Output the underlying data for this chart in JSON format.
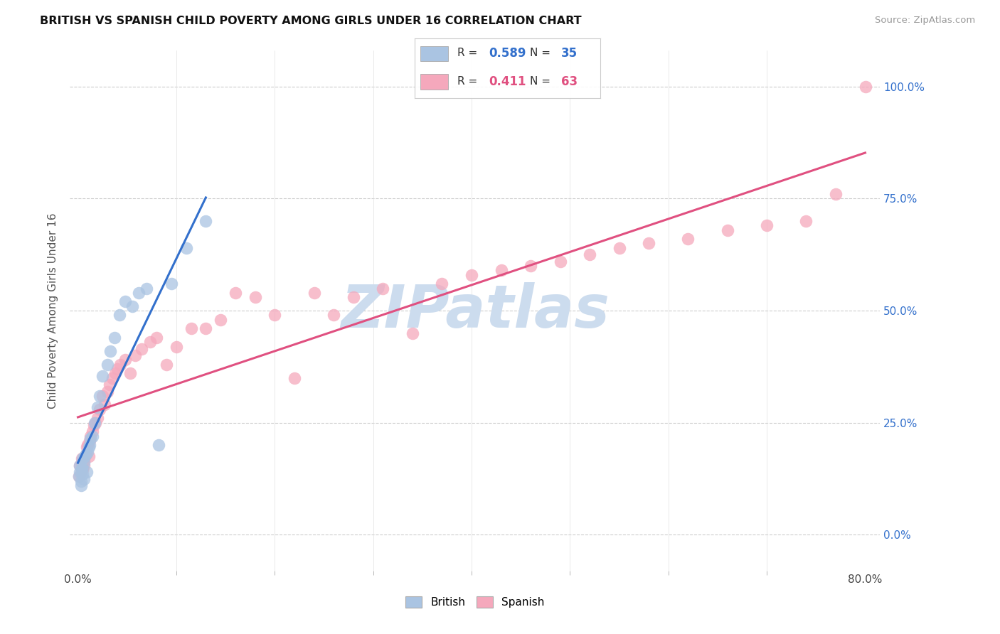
{
  "title": "BRITISH VS SPANISH CHILD POVERTY AMONG GIRLS UNDER 16 CORRELATION CHART",
  "source": "Source: ZipAtlas.com",
  "ylabel": "Child Poverty Among Girls Under 16",
  "british_R": 0.589,
  "british_N": 35,
  "spanish_R": 0.411,
  "spanish_N": 63,
  "british_color": "#aac4e2",
  "spanish_color": "#f5a8bc",
  "british_line_color": "#3370cc",
  "spanish_line_color": "#e05080",
  "watermark_text": "ZIPatlas",
  "watermark_color": "#ccdcee",
  "xlim": [
    0.0,
    0.8
  ],
  "ylim": [
    0.0,
    1.0
  ],
  "british_x": [
    0.001,
    0.002,
    0.002,
    0.003,
    0.003,
    0.004,
    0.004,
    0.005,
    0.005,
    0.006,
    0.006,
    0.007,
    0.008,
    0.009,
    0.01,
    0.011,
    0.012,
    0.013,
    0.015,
    0.017,
    0.02,
    0.022,
    0.025,
    0.03,
    0.033,
    0.037,
    0.042,
    0.048,
    0.055,
    0.062,
    0.07,
    0.082,
    0.095,
    0.11,
    0.13
  ],
  "british_y": [
    0.13,
    0.14,
    0.155,
    0.11,
    0.12,
    0.15,
    0.145,
    0.135,
    0.17,
    0.125,
    0.16,
    0.175,
    0.18,
    0.14,
    0.185,
    0.195,
    0.2,
    0.215,
    0.22,
    0.25,
    0.285,
    0.31,
    0.355,
    0.38,
    0.41,
    0.44,
    0.49,
    0.52,
    0.51,
    0.54,
    0.55,
    0.2,
    0.56,
    0.64,
    0.7
  ],
  "spanish_x": [
    0.001,
    0.002,
    0.003,
    0.004,
    0.004,
    0.005,
    0.005,
    0.006,
    0.006,
    0.007,
    0.008,
    0.009,
    0.01,
    0.011,
    0.012,
    0.013,
    0.015,
    0.016,
    0.018,
    0.02,
    0.022,
    0.025,
    0.027,
    0.03,
    0.032,
    0.035,
    0.038,
    0.04,
    0.043,
    0.048,
    0.053,
    0.058,
    0.065,
    0.073,
    0.08,
    0.09,
    0.1,
    0.115,
    0.13,
    0.145,
    0.16,
    0.18,
    0.2,
    0.22,
    0.24,
    0.26,
    0.28,
    0.31,
    0.34,
    0.37,
    0.4,
    0.43,
    0.46,
    0.49,
    0.52,
    0.55,
    0.58,
    0.62,
    0.66,
    0.7,
    0.74,
    0.77,
    0.8
  ],
  "spanish_y": [
    0.13,
    0.155,
    0.14,
    0.16,
    0.17,
    0.15,
    0.145,
    0.155,
    0.165,
    0.175,
    0.18,
    0.195,
    0.2,
    0.175,
    0.21,
    0.22,
    0.23,
    0.245,
    0.25,
    0.26,
    0.28,
    0.31,
    0.29,
    0.32,
    0.335,
    0.35,
    0.36,
    0.37,
    0.38,
    0.39,
    0.36,
    0.4,
    0.415,
    0.43,
    0.44,
    0.38,
    0.42,
    0.46,
    0.46,
    0.48,
    0.54,
    0.53,
    0.49,
    0.35,
    0.54,
    0.49,
    0.53,
    0.55,
    0.45,
    0.56,
    0.58,
    0.59,
    0.6,
    0.61,
    0.625,
    0.64,
    0.65,
    0.66,
    0.68,
    0.69,
    0.7,
    0.76,
    1.0
  ],
  "ytick_vals": [
    0.0,
    0.25,
    0.5,
    0.75,
    1.0
  ],
  "ytick_labels": [
    "0.0%",
    "25.0%",
    "50.0%",
    "75.0%",
    "100.0%"
  ],
  "xtick_minor": [
    0.0,
    0.1,
    0.2,
    0.3,
    0.4,
    0.5,
    0.6,
    0.7,
    0.8
  ]
}
